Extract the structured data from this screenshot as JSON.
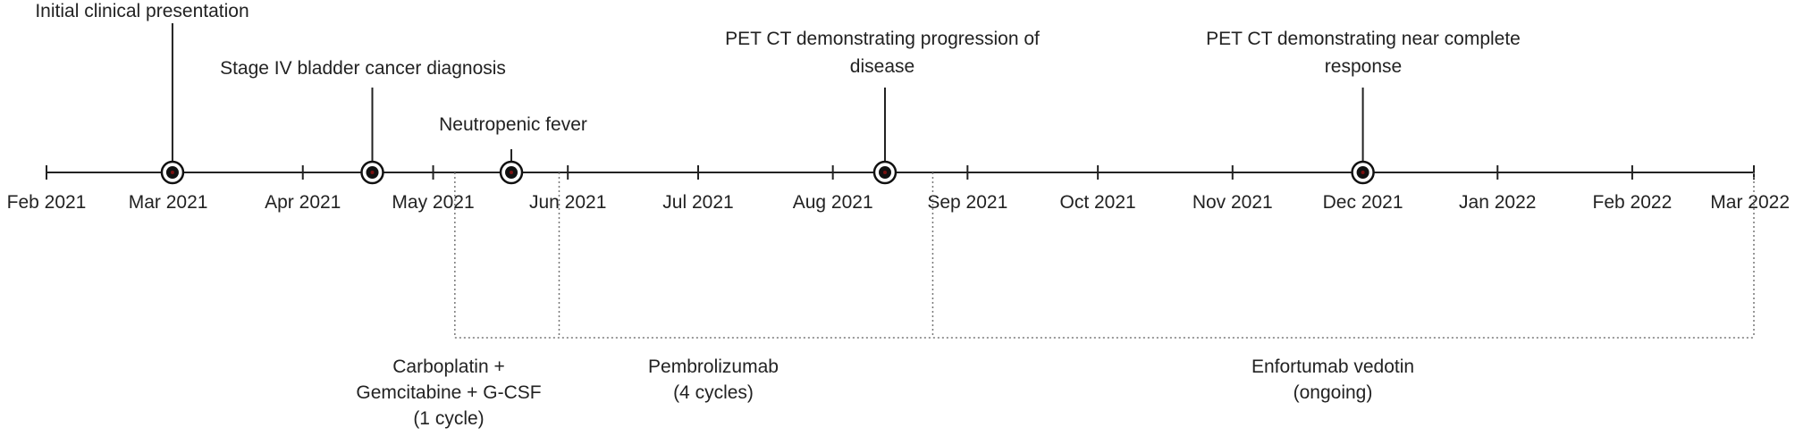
{
  "timeline": {
    "months": [
      "Feb 2021",
      "Mar 2021",
      "Apr 2021",
      "May 2021",
      "Jun 2021",
      "Jul 2021",
      "Aug 2021",
      "Sep 2021",
      "Oct 2021",
      "Nov 2021",
      "Dec 2021",
      "Jan 2022",
      "Feb 2022",
      "Mar 2022"
    ],
    "events": [
      {
        "label_lines": [
          "Initial clinical presentation"
        ],
        "date": "2021-03-02"
      },
      {
        "label_lines": [
          "Stage IV bladder cancer diagnosis"
        ],
        "date": "2021-04-17"
      },
      {
        "label_lines": [
          "Neutropenic fever"
        ],
        "date": "2021-05-19"
      },
      {
        "label_lines": [
          "PET CT demonstrating progression of",
          "disease"
        ],
        "date": "2021-08-13"
      },
      {
        "label_lines": [
          "PET CT demonstrating near complete",
          "response"
        ],
        "date": "2021-12-01"
      }
    ],
    "treatments": [
      {
        "label_lines": [
          "Carboplatin +",
          "Gemcitabine + G-CSF",
          "(1 cycle)"
        ],
        "start": "2021-05-06",
        "end": "2021-05-30"
      },
      {
        "label_lines": [
          "Pembrolizumab",
          "(4 cycles)"
        ],
        "start": "2021-05-30",
        "end": "2021-08-24"
      },
      {
        "label_lines": [
          "Enfortumab vedotin",
          "(ongoing)"
        ],
        "start": "2021-08-24",
        "end": "2022-03-01"
      }
    ]
  }
}
